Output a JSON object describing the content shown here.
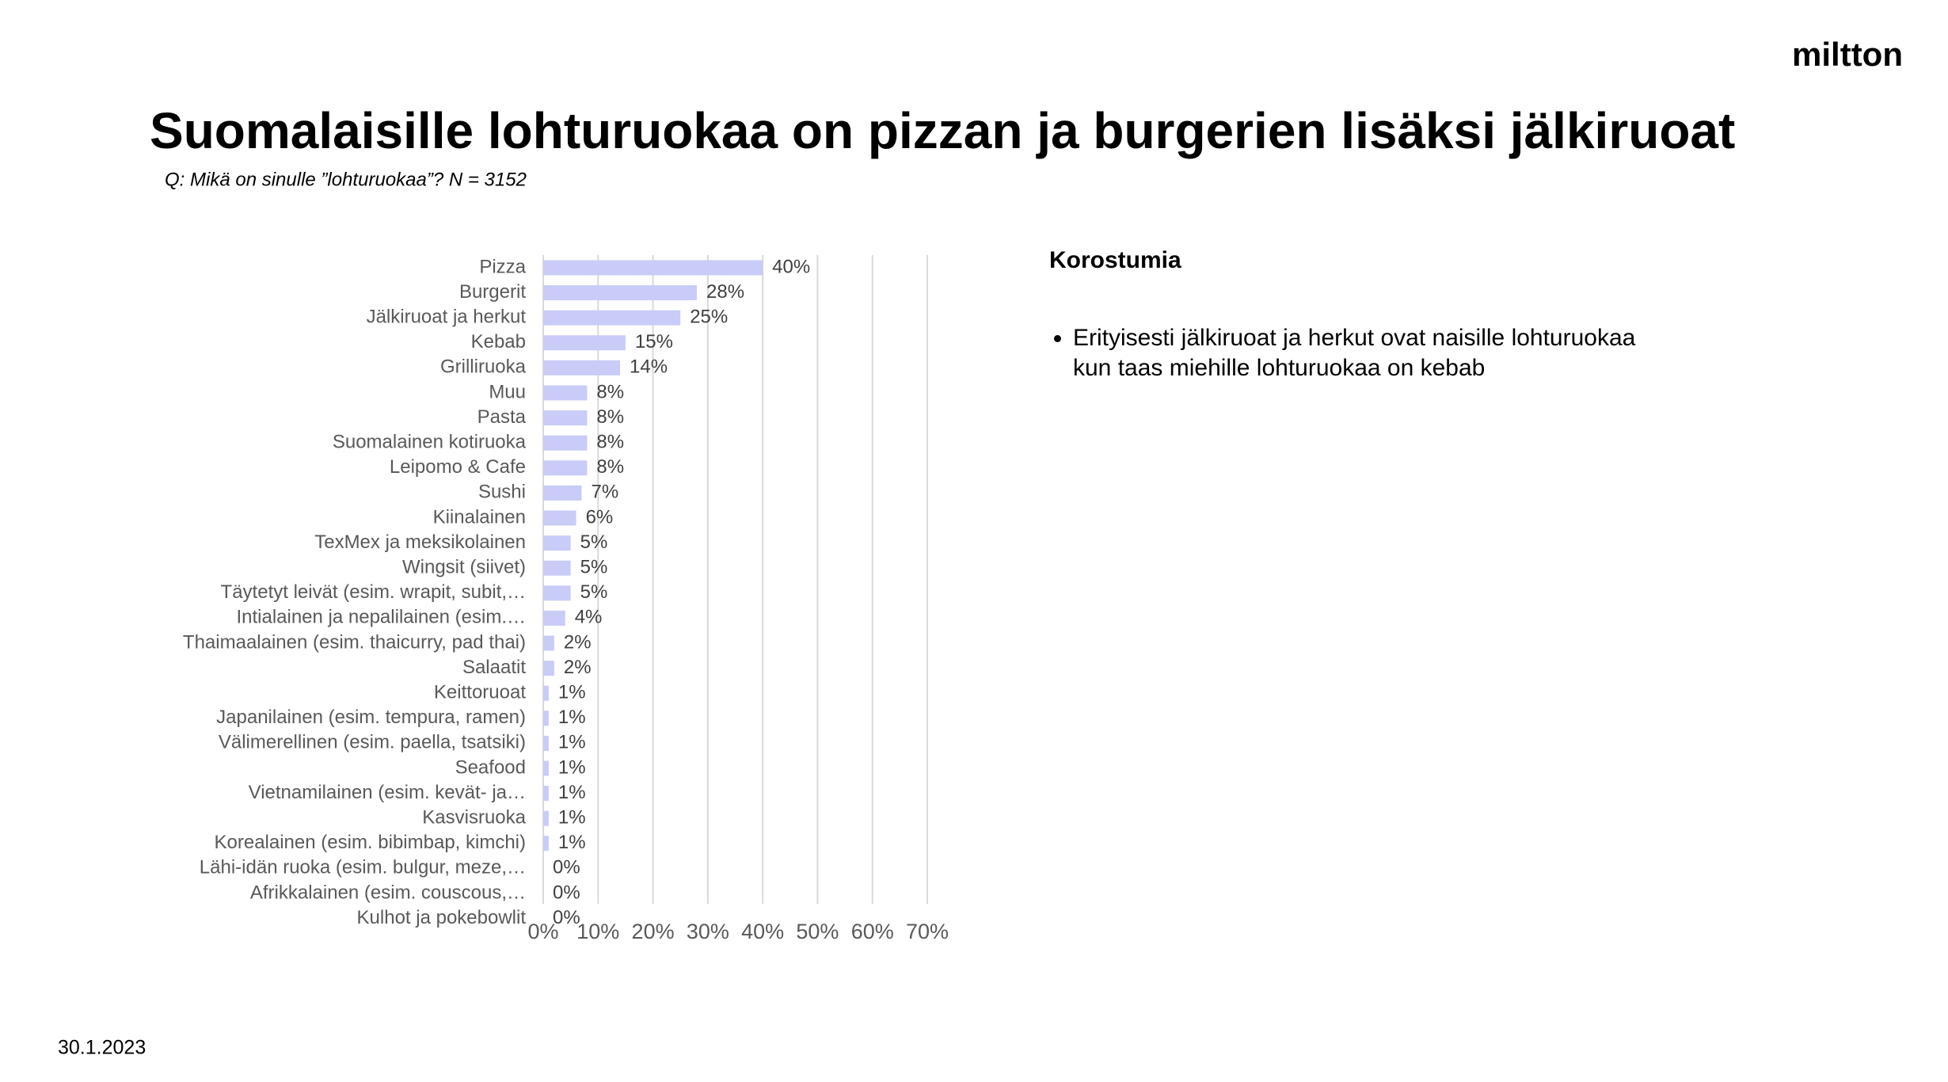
{
  "logo": "miltton",
  "title": "Suomalaisille lohturuokaa on pizzan ja burgerien lisäksi jälkiruoat",
  "subtitle": "Q: Mikä on sinulle ”lohturuokaa”? N = 3152",
  "chart_data": {
    "type": "bar",
    "orientation": "horizontal",
    "categories": [
      "Pizza",
      "Burgerit",
      "Jälkiruoat ja herkut",
      "Kebab",
      "Grilliruoka",
      "Muu",
      "Pasta",
      "Suomalainen kotiruoka",
      "Leipomo & Cafe",
      "Sushi",
      "Kiinalainen",
      "TexMex ja meksikolainen",
      "Wingsit (siivet)",
      "Täytetyt leivät (esim. wrapit, subit,…",
      "Intialainen ja nepalilainen (esim.…",
      "Thaimaalainen (esim. thaicurry, pad thai)",
      "Salaatit",
      "Keittoruoat",
      "Japanilainen (esim. tempura, ramen)",
      "Välimerellinen (esim. paella, tsatsiki)",
      "Seafood",
      "Vietnamilainen (esim. kevät- ja…",
      "Kasvisruoka",
      "Korealainen (esim. bibimbap, kimchi)",
      "Lähi-idän ruoka (esim. bulgur, meze,…",
      "Afrikkalainen (esim. couscous,…",
      "Kulhot ja pokebowlit"
    ],
    "values": [
      40,
      28,
      25,
      15,
      14,
      8,
      8,
      8,
      8,
      7,
      6,
      5,
      5,
      5,
      4,
      2,
      2,
      1,
      1,
      1,
      1,
      1,
      1,
      1,
      0,
      0,
      0
    ],
    "value_labels": [
      "40%",
      "28%",
      "25%",
      "15%",
      "14%",
      "8%",
      "8%",
      "8%",
      "8%",
      "7%",
      "6%",
      "5%",
      "5%",
      "5%",
      "4%",
      "2%",
      "2%",
      "1%",
      "1%",
      "1%",
      "1%",
      "1%",
      "1%",
      "1%",
      "0%",
      "0%",
      "0%"
    ],
    "color": "#c8ccf6",
    "xlim": [
      0,
      70
    ],
    "xticks": [
      {
        "value": 0,
        "label": "0%"
      },
      {
        "value": 10,
        "label": "10%"
      },
      {
        "value": 20,
        "label": "20%"
      },
      {
        "value": 30,
        "label": "30%"
      },
      {
        "value": 40,
        "label": "40%"
      },
      {
        "value": 50,
        "label": "50%"
      },
      {
        "value": 60,
        "label": "60%"
      },
      {
        "value": 70,
        "label": "70%"
      }
    ],
    "grid": true
  },
  "highlights": {
    "heading": "Korostumia",
    "bullets": [
      "Erityisesti jälkiruoat ja herkut ovat naisille lohturuokaa kun taas miehille lohturuokaa on kebab"
    ]
  },
  "date": "30.1.2023"
}
